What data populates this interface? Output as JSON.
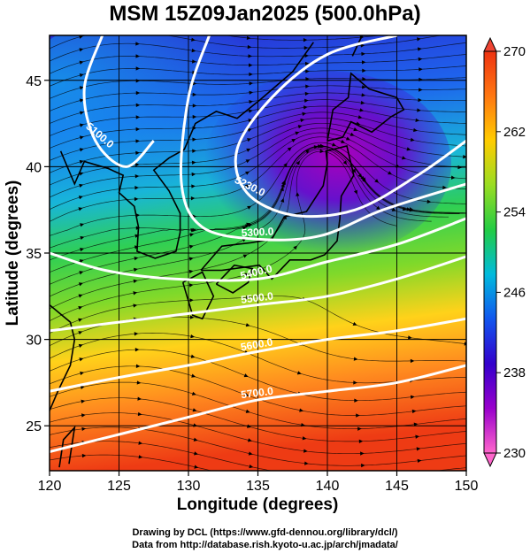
{
  "title": "MSM 15Z09Jan2025 (500.0hPa)",
  "axes": {
    "xlabel": "Longitude (degrees)",
    "ylabel": "Latitude  (degrees)",
    "xlim": [
      120,
      150
    ],
    "ylim": [
      22.4,
      47.6
    ],
    "xticks": [
      120,
      125,
      130,
      135,
      140,
      145,
      150
    ],
    "yticks": [
      25,
      30,
      35,
      40,
      45
    ]
  },
  "colorbar": {
    "min": 230,
    "max": 270,
    "ticks": [
      230,
      238,
      246,
      254,
      262,
      270
    ],
    "colors": [
      "#ff66cc",
      "#9900cc",
      "#3300cc",
      "#1155ee",
      "#00bbdd",
      "#22cc44",
      "#99dd22",
      "#ffcc00",
      "#ff7711",
      "#ee3311"
    ]
  },
  "contours": [
    {
      "label": "5100.0",
      "points": [
        [
          123.8,
          47.6
        ],
        [
          122.5,
          44.5
        ],
        [
          123.3,
          41.5
        ],
        [
          125.5,
          40.0
        ],
        [
          127.5,
          41.5
        ]
      ]
    },
    {
      "label": "5230.0",
      "points": [
        [
          145.0,
          47.6
        ],
        [
          140.0,
          46.5
        ],
        [
          136.0,
          44.0
        ],
        [
          133.5,
          41.0
        ],
        [
          134.2,
          38.5
        ],
        [
          137.5,
          37.2
        ],
        [
          142.0,
          37.5
        ],
        [
          146.5,
          39.5
        ],
        [
          150.0,
          41.5
        ]
      ]
    },
    {
      "label": "5300.0",
      "points": [
        [
          131.5,
          47.6
        ],
        [
          130.0,
          44.0
        ],
        [
          129.5,
          39.0
        ],
        [
          131.0,
          36.5
        ],
        [
          135.0,
          35.8
        ],
        [
          139.5,
          36.0
        ],
        [
          144.0,
          37.5
        ],
        [
          150.0,
          39.0
        ]
      ]
    },
    {
      "label": "5400.0",
      "points": [
        [
          120.0,
          35.0
        ],
        [
          124.0,
          34.0
        ],
        [
          129.0,
          33.5
        ],
        [
          135.0,
          33.5
        ],
        [
          140.0,
          34.5
        ],
        [
          145.0,
          35.5
        ],
        [
          150.0,
          37.0
        ]
      ]
    },
    {
      "label": "5500.0",
      "points": [
        [
          120.0,
          30.5
        ],
        [
          125.0,
          31.0
        ],
        [
          130.0,
          31.5
        ],
        [
          135.0,
          32.0
        ],
        [
          140.0,
          32.5
        ],
        [
          145.0,
          33.5
        ],
        [
          150.0,
          34.8
        ]
      ]
    },
    {
      "label": "5600.0",
      "points": [
        [
          120.0,
          27.0
        ],
        [
          125.0,
          27.8
        ],
        [
          130.0,
          28.5
        ],
        [
          135.0,
          29.3
        ],
        [
          140.0,
          30.0
        ],
        [
          145.0,
          30.5
        ],
        [
          150.0,
          31.2
        ]
      ]
    },
    {
      "label": "5700.0",
      "points": [
        [
          120.0,
          23.5
        ],
        [
          125.0,
          24.5
        ],
        [
          130.0,
          25.5
        ],
        [
          135.0,
          26.5
        ],
        [
          140.0,
          27.0
        ],
        [
          145.0,
          27.5
        ],
        [
          150.0,
          28.5
        ]
      ]
    }
  ],
  "credits": {
    "line1": "Drawing by DCL (https://www.gfd-dennou.org/library/dcl/)",
    "line2": "Data from http://database.rish.kyoto-u.ac.jp/arch/jmadata/"
  }
}
